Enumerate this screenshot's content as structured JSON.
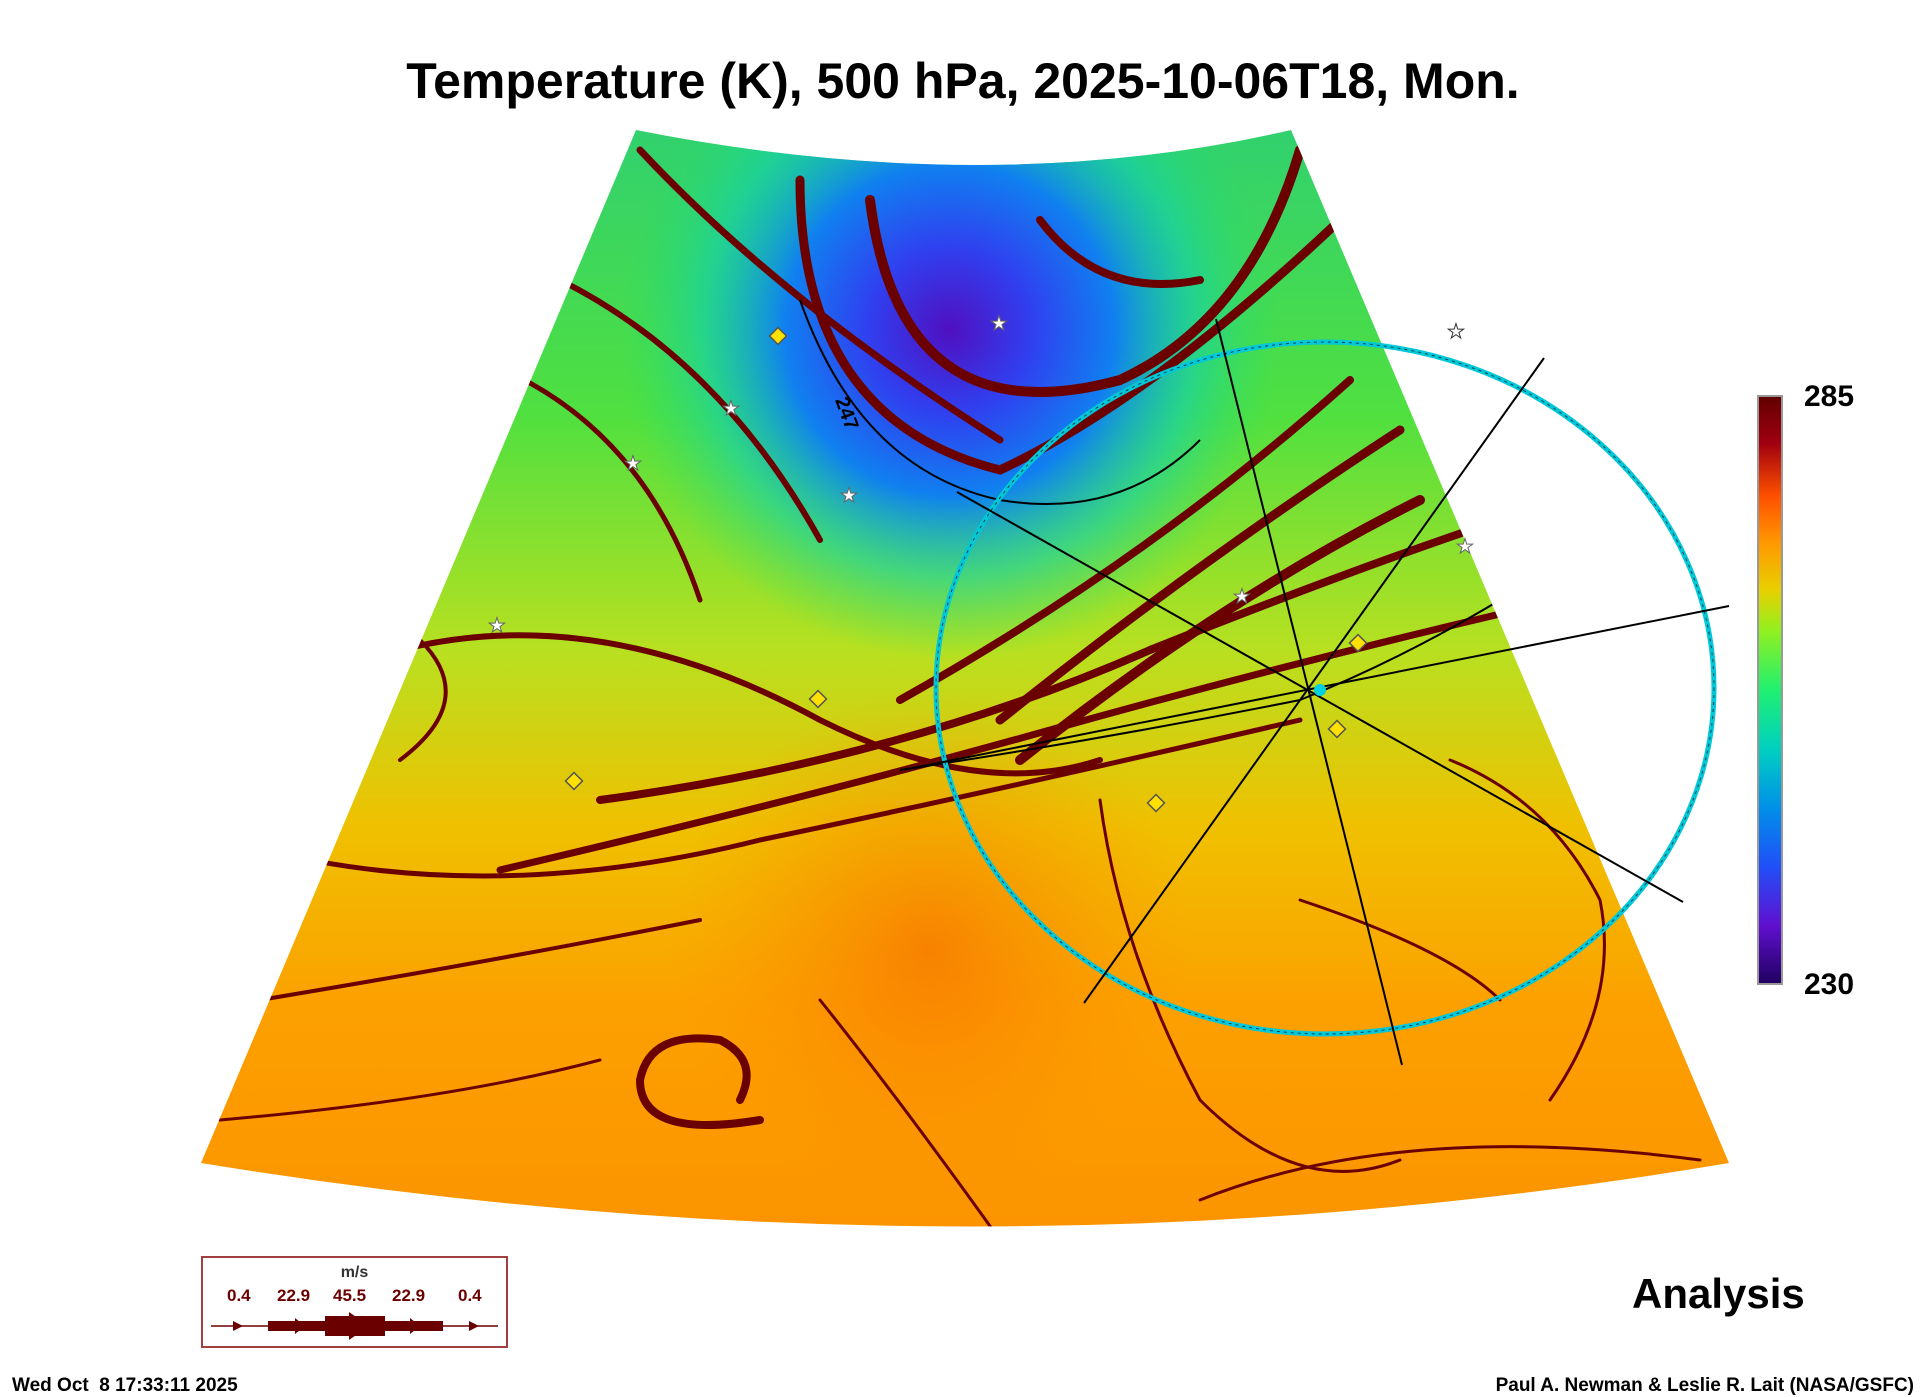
{
  "chart_data": {
    "type": "heatmap",
    "title": "Temperature (K), 500 hPa, 2025-10-06T18, Mon.",
    "variable": "Temperature (K)",
    "level": "500 hPa",
    "colorbar": {
      "min": 230,
      "max": 285,
      "min_label": "230",
      "max_label": "285"
    },
    "contour_label": "247",
    "overlay_label": "Analysis",
    "wind_legend": {
      "unit": "m/s",
      "values": [
        "0.4",
        "22.9",
        "45.5",
        "22.9",
        "0.4"
      ]
    }
  },
  "footer": {
    "timestamp": "Wed Oct  8 17:33:11 2025",
    "credit": "Paul A. Newman & Leslie R. Lait (NASA/GSFC)"
  },
  "colors": {
    "streamline": "#6b0000",
    "ring": "#00c8d8"
  }
}
